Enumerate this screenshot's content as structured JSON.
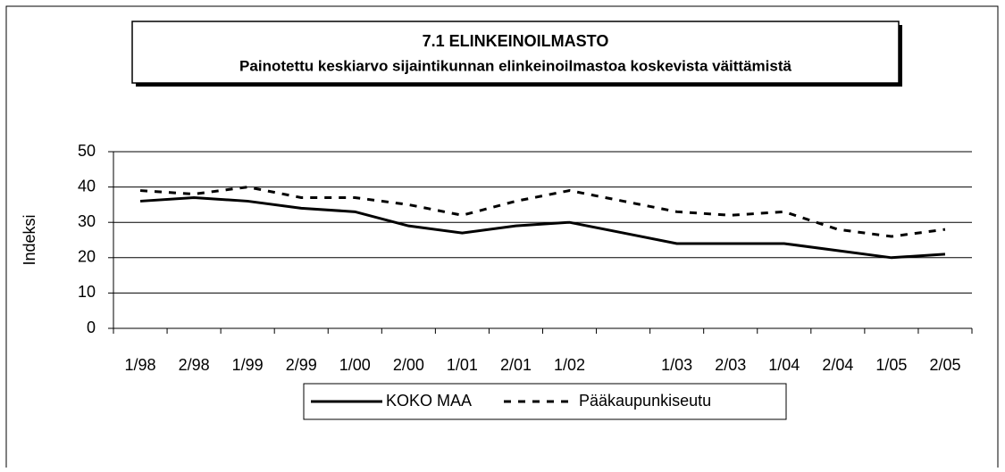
{
  "chart_data": {
    "type": "line",
    "title": "7.1 ELINKEINOILMASTO",
    "subtitle": "Painotettu keskiarvo sijaintikunnan elinkeinoilmastoa koskevista väittämistä",
    "y_label": "Indeksi",
    "categories": [
      "1/98",
      "2/98",
      "1/99",
      "2/99",
      "1/00",
      "2/00",
      "1/01",
      "2/01",
      "1/02",
      null,
      "1/03",
      "2/03",
      "1/04",
      "2/04",
      "1/05",
      "2/05"
    ],
    "series": [
      {
        "name": "KOKO MAA",
        "color": "#000000",
        "style": "solid",
        "values": [
          36,
          37,
          36,
          34,
          33,
          29,
          27,
          29,
          30,
          27,
          24,
          24,
          24,
          22,
          20,
          21
        ]
      },
      {
        "name": "Pääkaupunkiseutu",
        "color": "#000000",
        "style": "dashed",
        "values": [
          39,
          38,
          40,
          37,
          37,
          35,
          32,
          36,
          39,
          36,
          33,
          32,
          33,
          28,
          26,
          28
        ]
      }
    ],
    "ylim": [
      0,
      50
    ],
    "yticks": [
      0,
      10,
      20,
      30,
      40,
      50
    ],
    "grid": true,
    "legend": "bottom"
  }
}
